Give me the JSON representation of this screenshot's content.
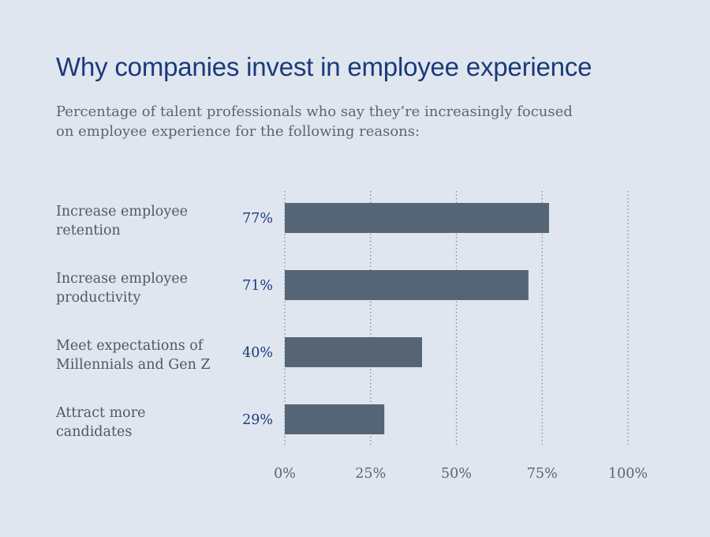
{
  "title": "Why companies invest in employee experience",
  "subtitle_lines": [
    "Percentage of talent professionals who say they’re increasingly focused",
    "on employee experience for the following reasons:"
  ],
  "colors": {
    "background": "#dfe6ef",
    "bar": "#566575",
    "title": "#1b3a7a",
    "value_label": "#1b3a7a",
    "text": "#4f5866",
    "grid": "#7d8692"
  },
  "chart_data": {
    "type": "bar",
    "orientation": "horizontal",
    "categories": [
      [
        "Increase employee",
        "retention"
      ],
      [
        "Increase employee",
        "productivity"
      ],
      [
        "Meet expectations of",
        "Millennials and Gen Z"
      ],
      [
        "Attract more",
        "candidates"
      ]
    ],
    "values": [
      77,
      71,
      40,
      29
    ],
    "value_labels": [
      "77%",
      "71%",
      "40%",
      "29%"
    ],
    "xlim": [
      0,
      100
    ],
    "xticks": [
      0,
      25,
      50,
      75,
      100
    ],
    "xtick_labels": [
      "0%",
      "25%",
      "50%",
      "75%",
      "100%"
    ],
    "grid": "vertical dotted",
    "legend": "none"
  }
}
